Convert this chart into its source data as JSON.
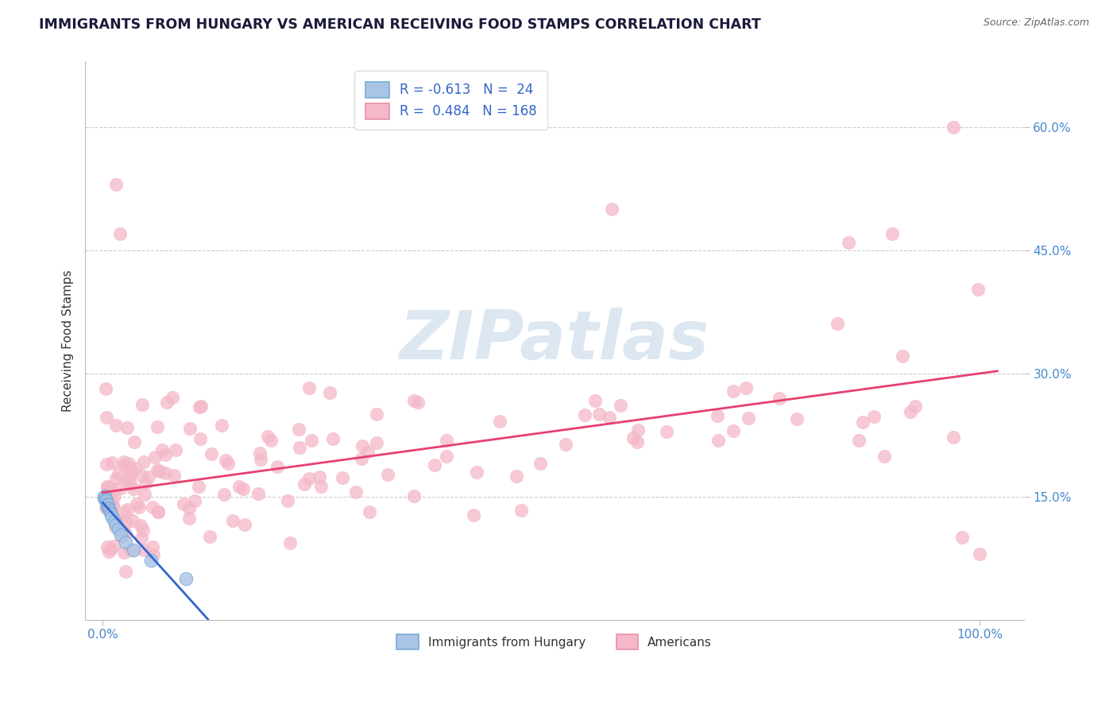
{
  "title": "IMMIGRANTS FROM HUNGARY VS AMERICAN RECEIVING FOOD STAMPS CORRELATION CHART",
  "source_text": "Source: ZipAtlas.com",
  "ylabel": "Receiving Food Stamps",
  "watermark": "ZIPatlas",
  "legend_top": [
    {
      "R_label": "R = -0.613",
      "N_label": "N =  24",
      "color": "#aac4e8",
      "edge_color": "#7aaad4"
    },
    {
      "R_label": "R =  0.484",
      "N_label": "N = 168",
      "color": "#f4b8c8",
      "edge_color": "#e890a8"
    }
  ],
  "legend_bottom": [
    {
      "label": "Immigrants from Hungary",
      "color": "#aac4e8",
      "edge_color": "#7aaad4"
    },
    {
      "label": "Americans",
      "color": "#f4b8c8",
      "edge_color": "#e890a8"
    }
  ],
  "blue_x": [
    0.15,
    0.2,
    0.25,
    0.3,
    0.35,
    0.4,
    0.45,
    0.5,
    0.55,
    0.6,
    0.65,
    0.7,
    0.8,
    0.9,
    1.0,
    1.1,
    1.3,
    1.5,
    1.8,
    2.1,
    2.6,
    3.5,
    5.5,
    9.5
  ],
  "blue_y": [
    0.15,
    0.148,
    0.151,
    0.147,
    0.146,
    0.143,
    0.145,
    0.141,
    0.138,
    0.14,
    0.136,
    0.135,
    0.133,
    0.13,
    0.128,
    0.125,
    0.12,
    0.116,
    0.11,
    0.103,
    0.095,
    0.085,
    0.072,
    0.05
  ],
  "blue_line_color": "#3366cc",
  "pink_line_color": "#e84070",
  "grid_color": "#c8c8c8",
  "bg_color": "#ffffff",
  "title_color": "#1a1a3a",
  "tick_color": "#4488cc",
  "watermark_color": "#c0d4e8",
  "title_fontsize": 12.5,
  "tick_fontsize": 11,
  "legend_fontsize": 12,
  "watermark_fontsize": 62,
  "dot_size": 140
}
